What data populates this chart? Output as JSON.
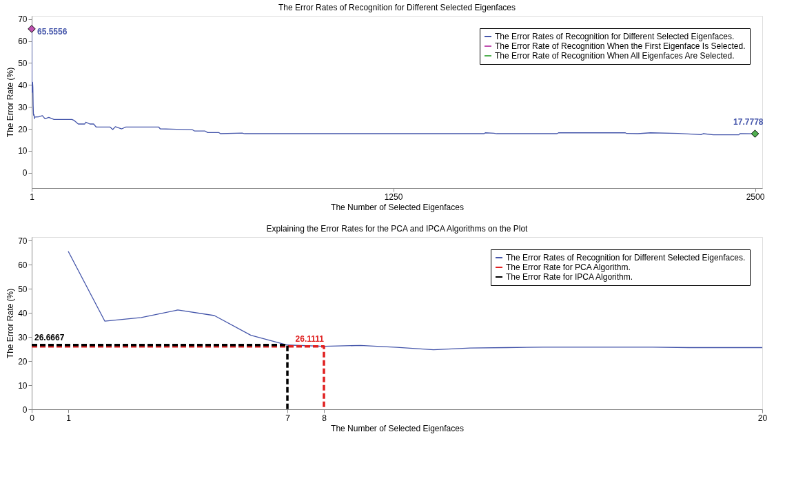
{
  "chart_data": [
    {
      "type": "line",
      "title": "The Error Rates of Recognition for Different Selected Eigenfaces",
      "xlabel": "The Number of Selected Eigenfaces",
      "ylabel": "The Error Rate (%)",
      "xlim": [
        1,
        2525
      ],
      "ylim": [
        -7,
        71.5
      ],
      "xticks": [
        1,
        1250,
        2500
      ],
      "yticks": [
        0,
        10,
        20,
        30,
        40,
        50,
        60,
        70
      ],
      "grid": false,
      "legend": "top right",
      "series": [
        {
          "name": "The Error Rates of Recognition for Different Selected Eigenfaces.",
          "color": "#4455aa",
          "line_style": "solid",
          "x": [
            1,
            2,
            3,
            4,
            5,
            6,
            7,
            8,
            9,
            10,
            11,
            12,
            25,
            38,
            47,
            60,
            78,
            140,
            148,
            162,
            184,
            188,
            202,
            215,
            224,
            272,
            281,
            290,
            312,
            326,
            440,
            445,
            556,
            564,
            600,
            609,
            648,
            653,
            728,
            737,
            1564,
            1568,
            1598,
            1607,
            1816,
            1821,
            2052,
            2056,
            2095,
            2139,
            2234,
            2313,
            2321,
            2356,
            2444,
            2448,
            2500
          ],
          "values": [
            65.5556,
            36.6,
            38.1,
            41.2,
            38.9,
            30.7,
            26.6667,
            26.1111,
            26.5,
            25.7,
            24.7,
            25.4,
            25.5,
            26,
            24.6,
            25.2,
            24.3,
            24.3,
            23.8,
            22.2,
            22.2,
            23,
            22.2,
            22.2,
            20.8,
            20.8,
            19.7,
            21,
            20,
            20.8,
            20.8,
            20,
            19.6,
            19,
            19,
            18.3,
            18.3,
            17.8,
            18.1,
            17.8,
            17.8,
            18.2,
            18,
            17.8,
            17.8,
            18.2,
            18.2,
            17.9,
            17.8,
            18.2,
            17.9,
            17.4,
            17.8,
            17.3,
            17.3,
            17.8,
            17.7778
          ]
        },
        {
          "name": "The Error Rate of Recognition When the First Eigenface Is Selected.",
          "type": "scatter",
          "marker": "diamond",
          "color": "#c050b0",
          "x": [
            1
          ],
          "values": [
            65.5556
          ]
        },
        {
          "name": "The Error Rate of Recognition When All Eigenfaces Are Selected.",
          "type": "scatter",
          "marker": "diamond",
          "color": "#50b050",
          "x": [
            2500
          ],
          "values": [
            17.7778
          ]
        }
      ],
      "annotations": [
        {
          "text": "65.5556",
          "x": 1,
          "y": 65.5556
        },
        {
          "text": "17.7778",
          "x": 2500,
          "y": 17.7778
        }
      ]
    },
    {
      "type": "line",
      "title": "Explaining the Error Rates for the PCA and IPCA Algorithms on the Plot",
      "xlabel": "The Number of Selected Eigenfaces",
      "ylabel": "The Error Rate (%)",
      "xlim": [
        0,
        20
      ],
      "ylim": [
        0,
        71.5
      ],
      "xticks": [
        0,
        1,
        7,
        8,
        20
      ],
      "yticks": [
        0,
        10,
        20,
        30,
        40,
        50,
        60,
        70
      ],
      "grid": false,
      "legend": "top right",
      "series": [
        {
          "name": "The Error Rates of Recognition for Different Selected Eigenfaces.",
          "color": "#4455aa",
          "line_style": "solid",
          "x": [
            1,
            2,
            3,
            4,
            5,
            6,
            7,
            8,
            9,
            10,
            11,
            12,
            13,
            14,
            15,
            16,
            17,
            18,
            19,
            20
          ],
          "values": [
            65.5556,
            36.6,
            38.1,
            41.2,
            38.9,
            30.7,
            26.6667,
            26.1111,
            26.5,
            25.7,
            24.7,
            25.4,
            25.6,
            25.8,
            25.8,
            25.8,
            25.8,
            25.6,
            25.6,
            25.6
          ]
        },
        {
          "name": "The Error Rate for PCA Algorithm.",
          "color": "#e02020",
          "line_style": "dashed",
          "x": [
            0,
            8,
            8
          ],
          "values": [
            26.1111,
            26.1111,
            0
          ]
        },
        {
          "name": "The Error Rate for IPCA Algorithm.",
          "color": "#000000",
          "line_style": "dashed",
          "x": [
            0,
            7,
            7
          ],
          "values": [
            26.6667,
            26.6667,
            0
          ]
        }
      ],
      "annotations": [
        {
          "text": "26.6667",
          "x": 0,
          "y": 26.6667
        },
        {
          "text": "26.1111",
          "x": 8,
          "y": 26.1111
        }
      ]
    }
  ]
}
